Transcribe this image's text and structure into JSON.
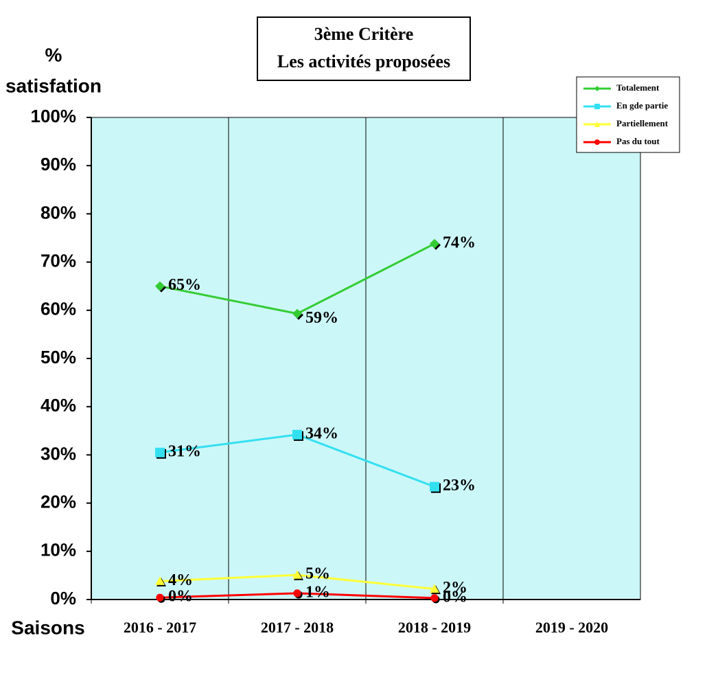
{
  "chart_data": {
    "type": "line",
    "title": [
      "3ème  Critère",
      "Les activités proposées"
    ],
    "y_label": [
      "%",
      "satisfation"
    ],
    "x_label": "Saisons",
    "categories": [
      "2016 - 2017",
      "2017 - 2018",
      "2018 - 2019",
      "2019 - 2020"
    ],
    "series": [
      {
        "name": "Totalement",
        "color": "#33cc33",
        "marker": "diamond",
        "values": [
          65,
          59.3,
          73.8,
          null
        ],
        "value_labels": [
          "65%",
          "59%",
          "74%",
          null
        ]
      },
      {
        "name": "En gde partie",
        "color": "#33e0f0",
        "marker": "square",
        "values": [
          30.5,
          34.2,
          23.4,
          null
        ],
        "value_labels": [
          "31%",
          "34%",
          "23%",
          null
        ]
      },
      {
        "name": "Partiellement",
        "color": "#ffff33",
        "marker": "triangle",
        "values": [
          3.8,
          5.1,
          2.2,
          null
        ],
        "value_labels": [
          "4%",
          "5%",
          "2%",
          null
        ]
      },
      {
        "name": "Pas du tout",
        "color": "#ff0000",
        "marker": "circle",
        "values": [
          0.4,
          1.3,
          0.3,
          null
        ],
        "value_labels": [
          "0%",
          "1%",
          "0%",
          null
        ]
      }
    ],
    "ylim": [
      0,
      100
    ],
    "yticks": [
      {
        "value": 0,
        "label": "0%"
      },
      {
        "value": 10,
        "label": "10%"
      },
      {
        "value": 20,
        "label": "20%"
      },
      {
        "value": 30,
        "label": "30%"
      },
      {
        "value": 40,
        "label": "40%"
      },
      {
        "value": 50,
        "label": "50%"
      },
      {
        "value": 60,
        "label": "60%"
      },
      {
        "value": 70,
        "label": "70%"
      },
      {
        "value": 80,
        "label": "80%"
      },
      {
        "value": 90,
        "label": "90%"
      },
      {
        "value": 100,
        "label": "100%"
      }
    ],
    "legend": "upper right",
    "plot_background": "#ccf7f9"
  }
}
